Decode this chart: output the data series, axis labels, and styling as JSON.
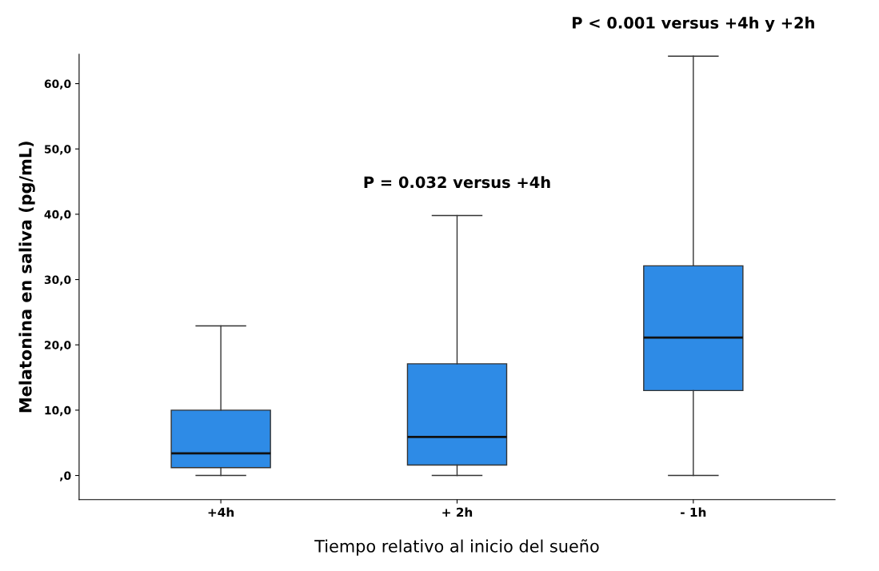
{
  "chart_data": {
    "type": "box",
    "xlabel": "Tiempo relativo al inicio del sueño",
    "ylabel": "Melatonina en saliva (pg/mL)",
    "categories": [
      "+4h",
      "+ 2h",
      "- 1h"
    ],
    "color": "#2e8be6",
    "boxes": [
      {
        "low": 0,
        "q1": 1.2,
        "median": 3.4,
        "q3": 10.0,
        "high": 22.9
      },
      {
        "low": 0,
        "q1": 1.6,
        "median": 5.9,
        "q3": 17.1,
        "high": 39.8
      },
      {
        "low": 0,
        "q1": 13.0,
        "median": 21.1,
        "q3": 32.1,
        "high": 64.2
      }
    ],
    "ylim": [
      -3.7,
      64.5
    ],
    "yticks": [
      {
        "value": 0,
        "label": ",0"
      },
      {
        "value": 10,
        "label": "10,0"
      },
      {
        "value": 20,
        "label": "20,0"
      },
      {
        "value": 30,
        "label": "30,0"
      },
      {
        "value": 40,
        "label": "40,0"
      },
      {
        "value": 50,
        "label": "50,0"
      },
      {
        "value": 60,
        "label": "60,0"
      }
    ],
    "annotations": [
      "P = 0.032 versus +4h",
      "P < 0.001 versus +4h y +2h"
    ],
    "grid": false,
    "legend": false
  }
}
